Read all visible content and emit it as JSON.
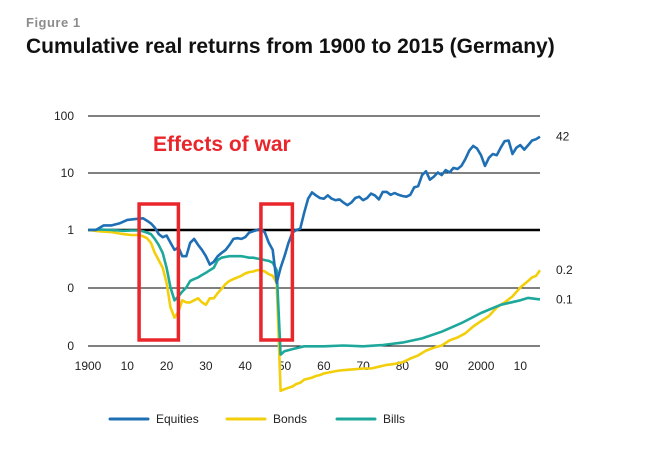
{
  "figure_label": "Figure 1",
  "chart_data": {
    "type": "line",
    "title": "Cumulative real returns from 1900 to 2015 (Germany)",
    "xlabel": "",
    "ylabel": "",
    "x_ticks": [
      "1900",
      "10",
      "20",
      "30",
      "40",
      "50",
      "60",
      "70",
      "80",
      "90",
      "2000",
      "10"
    ],
    "y_ticks": [
      "0",
      "0",
      "1",
      "10",
      "100"
    ],
    "xlim": [
      1900,
      2015
    ],
    "grid": "horizontal",
    "legend_position": "bottom",
    "colors": {
      "equities": "#1f6fb5",
      "bonds": "#f2cf0a",
      "bills": "#1ea89b",
      "box": "#e8262c",
      "annotation": "#e8262c",
      "grid": "#000000"
    },
    "annotation": "Effects of war",
    "highlight_ranges": [
      [
        1913,
        1923
      ],
      [
        1944,
        1952
      ]
    ],
    "series": [
      {
        "name": "Equities",
        "end_label": "42",
        "x": [
          1900,
          1902,
          1904,
          1906,
          1908,
          1910,
          1912,
          1914,
          1915,
          1916,
          1917,
          1918,
          1919,
          1920,
          1921,
          1922,
          1923,
          1924,
          1925,
          1926,
          1927,
          1928,
          1929,
          1930,
          1931,
          1932,
          1933,
          1934,
          1935,
          1936,
          1937,
          1938,
          1939,
          1940,
          1941,
          1942,
          1943,
          1944,
          1945,
          1946,
          1947,
          1948,
          1949,
          1950,
          1951,
          1952,
          1953,
          1954,
          1955,
          1956,
          1957,
          1958,
          1959,
          1960,
          1961,
          1962,
          1963,
          1964,
          1965,
          1966,
          1967,
          1968,
          1969,
          1970,
          1971,
          1972,
          1973,
          1974,
          1975,
          1976,
          1977,
          1978,
          1979,
          1980,
          1981,
          1982,
          1983,
          1984,
          1985,
          1986,
          1987,
          1988,
          1989,
          1990,
          1991,
          1992,
          1993,
          1994,
          1995,
          1996,
          1997,
          1998,
          1999,
          2000,
          2001,
          2002,
          2003,
          2004,
          2005,
          2006,
          2007,
          2008,
          2009,
          2010,
          2011,
          2012,
          2013,
          2014,
          2015
        ],
        "values": [
          1.0,
          1.0,
          1.2,
          1.2,
          1.3,
          1.5,
          1.55,
          1.6,
          1.45,
          1.3,
          1.1,
          0.85,
          0.75,
          0.8,
          0.6,
          0.45,
          0.5,
          0.35,
          0.35,
          0.6,
          0.7,
          0.55,
          0.45,
          0.35,
          0.25,
          0.28,
          0.35,
          0.4,
          0.45,
          0.55,
          0.7,
          0.72,
          0.7,
          0.75,
          0.9,
          0.95,
          1.0,
          1.05,
          0.9,
          0.6,
          0.45,
          0.12,
          0.22,
          0.35,
          0.6,
          0.9,
          1.0,
          1.05,
          2.0,
          3.5,
          4.5,
          4.0,
          3.6,
          3.5,
          4.0,
          3.5,
          3.3,
          3.4,
          3.0,
          2.7,
          3.0,
          3.6,
          3.8,
          3.3,
          3.6,
          4.3,
          4.0,
          3.4,
          4.6,
          4.6,
          4.1,
          4.4,
          4.1,
          3.9,
          3.8,
          4.1,
          5.5,
          5.8,
          9.0,
          10.5,
          7.5,
          8.5,
          10,
          9,
          11,
          10,
          12,
          11.5,
          13,
          17,
          24,
          29,
          26,
          20,
          13,
          18,
          21,
          20,
          27,
          35,
          36,
          21,
          27,
          30,
          25,
          30,
          36,
          38,
          42
        ]
      },
      {
        "name": "Bonds",
        "end_label": "0.2",
        "x": [
          1900,
          1903,
          1906,
          1909,
          1911,
          1913,
          1914,
          1915,
          1916,
          1917,
          1918,
          1919,
          1920,
          1921,
          1922,
          1923,
          1924,
          1925,
          1926,
          1927,
          1928,
          1929,
          1930,
          1931,
          1932,
          1933,
          1934,
          1935,
          1936,
          1937,
          1938,
          1939,
          1940,
          1941,
          1942,
          1943,
          1944,
          1945,
          1946,
          1947,
          1948,
          1949,
          1950,
          1951,
          1952,
          1953,
          1954,
          1955,
          1956,
          1957,
          1958,
          1959,
          1960,
          1962,
          1964,
          1966,
          1968,
          1970,
          1972,
          1974,
          1976,
          1978,
          1980,
          1982,
          1984,
          1986,
          1988,
          1990,
          1992,
          1994,
          1996,
          1998,
          2000,
          2002,
          2004,
          2006,
          2008,
          2010,
          2012,
          2013,
          2014,
          2015
        ],
        "values": [
          1.0,
          0.95,
          0.92,
          0.85,
          0.82,
          0.82,
          0.78,
          0.72,
          0.6,
          0.4,
          0.3,
          0.22,
          0.12,
          0.045,
          0.03,
          0.038,
          0.06,
          0.055,
          0.055,
          0.06,
          0.065,
          0.055,
          0.05,
          0.065,
          0.065,
          0.08,
          0.095,
          0.115,
          0.13,
          0.14,
          0.15,
          0.16,
          0.175,
          0.185,
          0.19,
          0.2,
          0.2,
          0.19,
          0.17,
          0.16,
          0.12,
          0.0016,
          0.0017,
          0.0018,
          0.0019,
          0.0021,
          0.0022,
          0.0025,
          0.0026,
          0.0027,
          0.0029,
          0.003,
          0.0032,
          0.0034,
          0.0036,
          0.0037,
          0.0038,
          0.0039,
          0.0039,
          0.0042,
          0.0045,
          0.0047,
          0.005,
          0.0058,
          0.0066,
          0.008,
          0.009,
          0.0098,
          0.012,
          0.0135,
          0.016,
          0.021,
          0.026,
          0.032,
          0.045,
          0.055,
          0.07,
          0.1,
          0.13,
          0.15,
          0.16,
          0.2
        ]
      },
      {
        "name": "Bills",
        "end_label": "0.1",
        "x": [
          1900,
          1903,
          1906,
          1909,
          1911,
          1913,
          1914,
          1915,
          1916,
          1917,
          1918,
          1919,
          1920,
          1921,
          1922,
          1923,
          1924,
          1925,
          1926,
          1927,
          1928,
          1929,
          1930,
          1931,
          1932,
          1933,
          1934,
          1935,
          1936,
          1937,
          1938,
          1939,
          1940,
          1941,
          1942,
          1943,
          1944,
          1945,
          1946,
          1947,
          1948,
          1949,
          1950,
          1952,
          1955,
          1960,
          1965,
          1970,
          1975,
          1980,
          1985,
          1990,
          1995,
          2000,
          2005,
          2010,
          2012,
          2015
        ],
        "values": [
          1.0,
          1.02,
          1.0,
          0.97,
          0.98,
          0.98,
          0.95,
          0.9,
          0.85,
          0.7,
          0.55,
          0.4,
          0.22,
          0.1,
          0.06,
          0.07,
          0.085,
          0.1,
          0.13,
          0.14,
          0.15,
          0.165,
          0.18,
          0.2,
          0.22,
          0.3,
          0.33,
          0.34,
          0.35,
          0.35,
          0.35,
          0.35,
          0.34,
          0.33,
          0.33,
          0.32,
          0.31,
          0.3,
          0.29,
          0.27,
          0.2,
          0.0068,
          0.0078,
          0.0085,
          0.0095,
          0.0095,
          0.0098,
          0.0095,
          0.01,
          0.011,
          0.013,
          0.017,
          0.024,
          0.036,
          0.05,
          0.06,
          0.066,
          0.062
        ]
      }
    ]
  }
}
